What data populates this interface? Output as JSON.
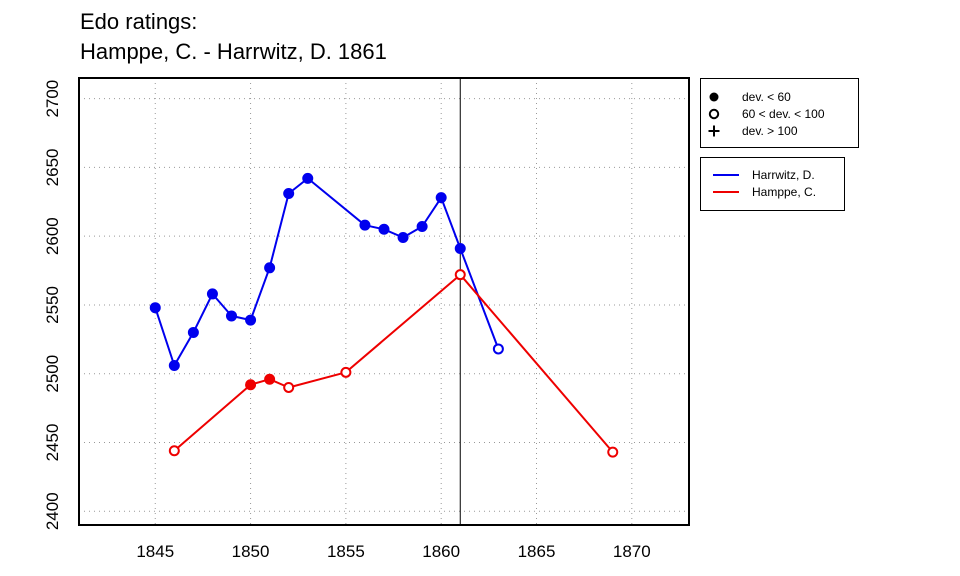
{
  "chart_data": {
    "type": "line",
    "title": "Edo ratings:",
    "subtitle": "Hamppe, C. - Harrwitz, D. 1861",
    "xlabel": "",
    "ylabel": "",
    "xlim": [
      1841,
      1873
    ],
    "ylim": [
      2390,
      2715
    ],
    "x_ticks": [
      "1845",
      "1850",
      "1855",
      "1860",
      "1865",
      "1870"
    ],
    "y_ticks": [
      "2400",
      "2450",
      "2500",
      "2550",
      "2600",
      "2650",
      "2700"
    ],
    "grid": true,
    "vline": 1861,
    "series": [
      {
        "name": "Harrwitz, D.",
        "color": "#0000ee",
        "points": [
          {
            "x": 1845,
            "y": 2548,
            "marker": "filled"
          },
          {
            "x": 1846,
            "y": 2506,
            "marker": "filled"
          },
          {
            "x": 1847,
            "y": 2530,
            "marker": "filled"
          },
          {
            "x": 1848,
            "y": 2558,
            "marker": "filled"
          },
          {
            "x": 1849,
            "y": 2542,
            "marker": "filled"
          },
          {
            "x": 1850,
            "y": 2539,
            "marker": "filled"
          },
          {
            "x": 1851,
            "y": 2577,
            "marker": "filled"
          },
          {
            "x": 1852,
            "y": 2631,
            "marker": "filled"
          },
          {
            "x": 1853,
            "y": 2642,
            "marker": "filled"
          },
          {
            "x": 1856,
            "y": 2608,
            "marker": "filled"
          },
          {
            "x": 1857,
            "y": 2605,
            "marker": "filled"
          },
          {
            "x": 1858,
            "y": 2599,
            "marker": "filled"
          },
          {
            "x": 1859,
            "y": 2607,
            "marker": "filled"
          },
          {
            "x": 1860,
            "y": 2628,
            "marker": "filled"
          },
          {
            "x": 1861,
            "y": 2591,
            "marker": "filled"
          },
          {
            "x": 1863,
            "y": 2518,
            "marker": "open"
          }
        ]
      },
      {
        "name": "Hamppe, C.",
        "color": "#ee0000",
        "points": [
          {
            "x": 1846,
            "y": 2444,
            "marker": "open"
          },
          {
            "x": 1850,
            "y": 2492,
            "marker": "filled"
          },
          {
            "x": 1851,
            "y": 2496,
            "marker": "filled"
          },
          {
            "x": 1852,
            "y": 2490,
            "marker": "open"
          },
          {
            "x": 1855,
            "y": 2501,
            "marker": "open"
          },
          {
            "x": 1861,
            "y": 2572,
            "marker": "open"
          },
          {
            "x": 1869,
            "y": 2443,
            "marker": "open"
          }
        ]
      }
    ],
    "legend_markers": [
      {
        "symbol": "filled",
        "label": "dev. < 60"
      },
      {
        "symbol": "open",
        "label": "60 < dev. < 100"
      },
      {
        "symbol": "plus",
        "label": "dev. > 100"
      }
    ],
    "legend_placement": "right"
  }
}
